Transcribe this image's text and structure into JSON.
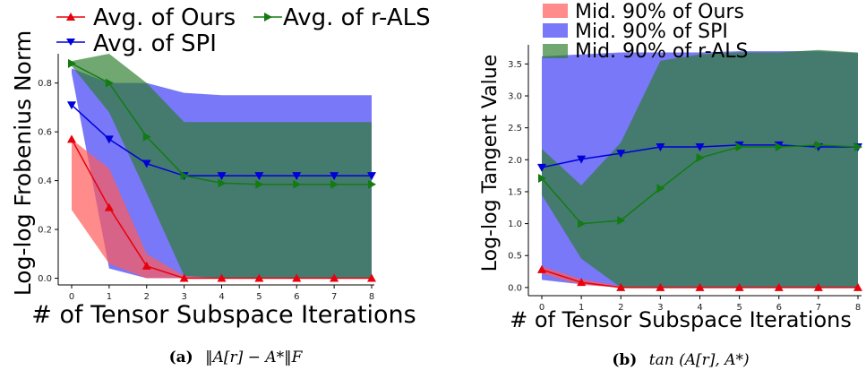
{
  "chart_data": [
    {
      "type": "line",
      "caption_label": "(a)",
      "caption_math": "‖A[r] − A*‖F",
      "xlabel": "# of Tensor Subspace Iterations",
      "ylabel": "Log-log Frobenius Norm",
      "x": [
        0,
        1,
        2,
        3,
        4,
        5,
        6,
        7,
        8
      ],
      "xticks": [
        "0",
        "1",
        "2",
        "3",
        "4",
        "5",
        "6",
        "7",
        "8"
      ],
      "yticks": [
        "0.0",
        "0.2",
        "0.4",
        "0.6",
        "0.8"
      ],
      "ylim": [
        -0.02,
        0.92
      ],
      "legend_position": "top",
      "series": [
        {
          "name": "Avg. of Ours",
          "color": "#e8000b",
          "marker": "triangle-up",
          "values": [
            0.57,
            0.29,
            0.05,
            0.0,
            0.0,
            0.0,
            0.0,
            0.0,
            0.0
          ]
        },
        {
          "name": "Avg. of SPI",
          "color": "#0000d9",
          "marker": "triangle-down",
          "values": [
            0.71,
            0.57,
            0.47,
            0.42,
            0.42,
            0.42,
            0.42,
            0.42,
            0.42
          ]
        },
        {
          "name": "Avg. of r-ALS",
          "color": "#127b12",
          "marker": "triangle-right",
          "values": [
            0.88,
            0.8,
            0.58,
            0.42,
            0.39,
            0.385,
            0.385,
            0.385,
            0.385
          ]
        }
      ],
      "bands": [
        {
          "color": "#4b4bf5",
          "opacity": 0.75,
          "upper": [
            0.86,
            0.8,
            0.8,
            0.76,
            0.75,
            0.75,
            0.75,
            0.75,
            0.75
          ],
          "lower": [
            0.84,
            0.04,
            0.0,
            0.0,
            0.0,
            0.0,
            0.0,
            0.0,
            0.0
          ]
        },
        {
          "color": "#ff5a5a",
          "opacity": 0.7,
          "upper": [
            0.57,
            0.45,
            0.1,
            0.01,
            0.0,
            0.0,
            0.0,
            0.0,
            0.0
          ],
          "lower": [
            0.28,
            0.06,
            0.0,
            0.0,
            0.0,
            0.0,
            0.0,
            0.0,
            0.0
          ]
        },
        {
          "color": "#2e7d2e",
          "opacity": 0.68,
          "upper": [
            0.89,
            0.92,
            0.8,
            0.64,
            0.64,
            0.64,
            0.64,
            0.64,
            0.64
          ],
          "lower": [
            0.87,
            0.68,
            0.35,
            0.01,
            0.0,
            0.0,
            0.0,
            0.0,
            0.0
          ]
        }
      ]
    },
    {
      "type": "line",
      "caption_label": "(b)",
      "caption_math": "tan (A[r], A*)",
      "xlabel": "# of Tensor Subspace Iterations",
      "ylabel": "Log-log Tangent Value",
      "x": [
        0,
        1,
        2,
        3,
        4,
        5,
        6,
        7,
        8
      ],
      "xticks": [
        "0",
        "1",
        "2",
        "3",
        "4",
        "5",
        "6",
        "7",
        "8"
      ],
      "yticks": [
        "0.0",
        "0.5",
        "1.0",
        "1.5",
        "2.0",
        "2.5",
        "3.0",
        "3.5"
      ],
      "ylim": [
        -0.1,
        3.8
      ],
      "legend_position": "top",
      "series": [
        {
          "name": "Avg. of Ours",
          "color": "#e8000b",
          "marker": "triangle-up",
          "values": [
            0.28,
            0.08,
            0.0,
            0.0,
            0.0,
            0.0,
            0.0,
            0.0,
            0.0
          ]
        },
        {
          "name": "Avg. of SPI",
          "color": "#0000d9",
          "marker": "triangle-down",
          "values": [
            1.88,
            2.01,
            2.1,
            2.2,
            2.2,
            2.23,
            2.23,
            2.2,
            2.2
          ]
        },
        {
          "name": "Avg. of r-ALS",
          "color": "#127b12",
          "marker": "triangle-right",
          "values": [
            1.71,
            1.0,
            1.05,
            1.55,
            2.03,
            2.2,
            2.2,
            2.23,
            2.2
          ]
        }
      ],
      "bands": [
        {
          "name": "Mid. 90% of SPI",
          "color": "#4b4bf5",
          "opacity": 0.75,
          "upper": [
            3.62,
            3.65,
            3.68,
            3.68,
            3.68,
            3.7,
            3.7,
            3.7,
            3.67
          ],
          "lower": [
            0.12,
            0.05,
            0.0,
            0.0,
            0.0,
            0.0,
            0.0,
            0.0,
            0.0
          ]
        },
        {
          "name": "Mid. 90% of Ours",
          "color": "#ff5a5a",
          "opacity": 0.7,
          "upper": [
            0.33,
            0.13,
            0.02,
            0.0,
            0.0,
            0.0,
            0.0,
            0.0,
            0.0
          ],
          "lower": [
            0.22,
            0.04,
            0.0,
            0.0,
            0.0,
            0.0,
            0.0,
            0.0,
            0.0
          ]
        },
        {
          "name": "Mid. 90% of r-ALS",
          "color": "#2e7d2e",
          "opacity": 0.68,
          "upper": [
            2.17,
            1.6,
            2.27,
            3.55,
            3.65,
            3.68,
            3.68,
            3.72,
            3.68
          ],
          "lower": [
            1.45,
            0.45,
            0.0,
            0.0,
            0.0,
            0.0,
            0.0,
            0.0,
            0.0
          ]
        }
      ]
    }
  ]
}
